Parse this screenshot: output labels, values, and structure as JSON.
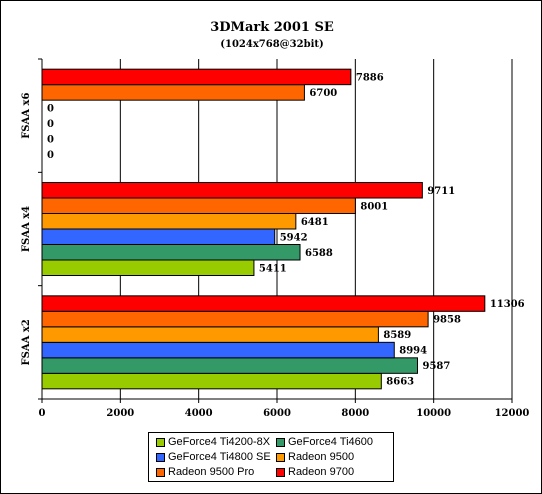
{
  "chart_data": {
    "type": "bar",
    "orientation": "horizontal",
    "title": "3DMark 2001 SE",
    "subtitle": "(1024x768@32bit)",
    "xlabel": "",
    "ylabel": "",
    "xlim": [
      0,
      12000
    ],
    "x_ticks": [
      0,
      2000,
      4000,
      6000,
      8000,
      10000,
      12000
    ],
    "grid": "vertical",
    "legend_position": "bottom",
    "categories": [
      "FSAA x2",
      "FSAA x4",
      "FSAA x6"
    ],
    "series": [
      {
        "name": "GeForce4 Ti4200-8X",
        "color": "#99cc00",
        "values": [
          8663,
          5411,
          0
        ]
      },
      {
        "name": "GeForce4 Ti4600",
        "color": "#339966",
        "values": [
          9587,
          6588,
          0
        ]
      },
      {
        "name": "GeForce4 Ti4800 SE",
        "color": "#3366ff",
        "values": [
          8994,
          5942,
          0
        ]
      },
      {
        "name": "Radeon 9500",
        "color": "#ff9900",
        "values": [
          8589,
          6481,
          0
        ]
      },
      {
        "name": "Radeon 9500 Pro",
        "color": "#ff6600",
        "values": [
          9858,
          8001,
          6700
        ]
      },
      {
        "name": "Radeon 9700",
        "color": "#ff0000",
        "values": [
          11306,
          9711,
          7886
        ]
      }
    ]
  }
}
